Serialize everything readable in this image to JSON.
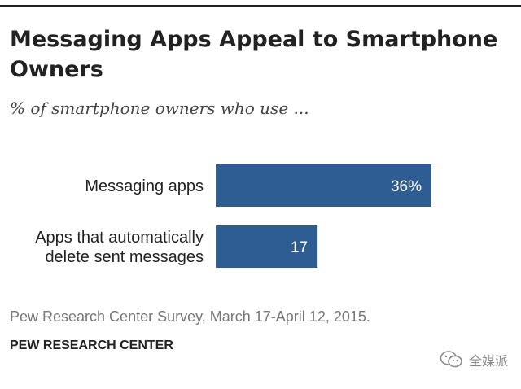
{
  "chart_data": {
    "type": "bar",
    "orientation": "horizontal",
    "title": "Messaging Apps Appeal to Smartphone Owners",
    "subtitle": "% of smartphone owners who use ...",
    "categories": [
      [
        "Messaging apps"
      ],
      [
        "Apps that automatically",
        "delete sent messages"
      ]
    ],
    "values": [
      36,
      17
    ],
    "value_labels": [
      "36%",
      "17"
    ],
    "xlim": [
      0,
      36
    ],
    "color": "#2e5d93",
    "xlabel": "",
    "ylabel": ""
  },
  "footer": {
    "source": "Pew Research Center Survey, March 17-April 12, 2015.",
    "organization": "PEW RESEARCH CENTER"
  },
  "watermark": {
    "text": "全媒派",
    "icon": "wechat-icon"
  }
}
